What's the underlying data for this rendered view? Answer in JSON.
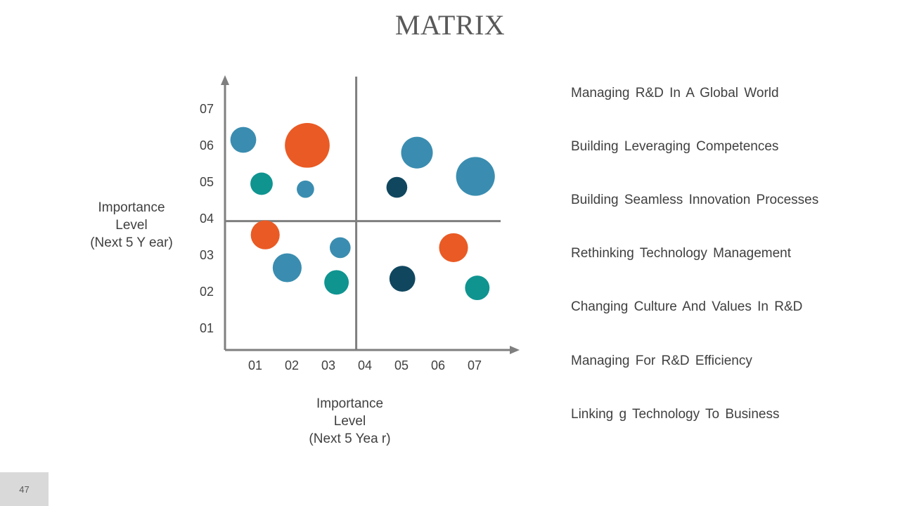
{
  "title": "MATRIX",
  "y_axis_label": [
    "Importance",
    "Level",
    "(Next 5 Y ear)"
  ],
  "x_axis_label": [
    "Importance",
    "Level",
    "(Next 5 Yea r)"
  ],
  "list_items": [
    "Managing R&D In A Global World",
    "Building Leveraging Competences",
    "Building Seamless Innovation Processes",
    "Rethinking Technology Management",
    "Changing Culture And Values In R&D",
    "Managing For R&D Efficiency",
    "Linking g Technology To Business"
  ],
  "page_number": "47",
  "colors": {
    "blue": "#3a8db0",
    "orange": "#ea5a24",
    "teal": "#0f9490",
    "navy": "#10475f",
    "axis": "#7f7f7f"
  },
  "chart_data": {
    "type": "scatter",
    "title": "",
    "xlabel": "Importance Level (Next 5 Yea r)",
    "ylabel": "Importance Level (Next 5 Y ear)",
    "x_ticks": [
      "01",
      "02",
      "03",
      "04",
      "05",
      "06",
      "07"
    ],
    "y_ticks": [
      "01",
      "02",
      "03",
      "04",
      "05",
      "06",
      "07"
    ],
    "xlim": [
      0.2,
      7.8
    ],
    "ylim": [
      0.3,
      7.8
    ],
    "quadrant_divider": {
      "x": 4.0,
      "y": 4.0
    },
    "grid": false,
    "points": [
      {
        "x": 0.7,
        "y": 6.05,
        "size": 2,
        "color": "blue"
      },
      {
        "x": 2.45,
        "y": 5.9,
        "size": 6,
        "color": "orange"
      },
      {
        "x": 5.45,
        "y": 5.7,
        "size": 3,
        "color": "blue"
      },
      {
        "x": 7.05,
        "y": 5.05,
        "size": 4.5,
        "color": "blue"
      },
      {
        "x": 1.2,
        "y": 4.85,
        "size": 1.5,
        "color": "teal"
      },
      {
        "x": 2.4,
        "y": 4.7,
        "size": 0.9,
        "color": "blue"
      },
      {
        "x": 4.9,
        "y": 4.75,
        "size": 1.3,
        "color": "navy"
      },
      {
        "x": 1.3,
        "y": 3.45,
        "size": 2.5,
        "color": "orange"
      },
      {
        "x": 3.35,
        "y": 3.1,
        "size": 1.3,
        "color": "blue"
      },
      {
        "x": 6.45,
        "y": 3.1,
        "size": 2.5,
        "color": "orange"
      },
      {
        "x": 1.9,
        "y": 2.55,
        "size": 2.5,
        "color": "blue"
      },
      {
        "x": 3.25,
        "y": 2.15,
        "size": 1.8,
        "color": "teal"
      },
      {
        "x": 5.05,
        "y": 2.25,
        "size": 2,
        "color": "navy"
      },
      {
        "x": 7.1,
        "y": 2.0,
        "size": 1.8,
        "color": "teal"
      }
    ]
  }
}
